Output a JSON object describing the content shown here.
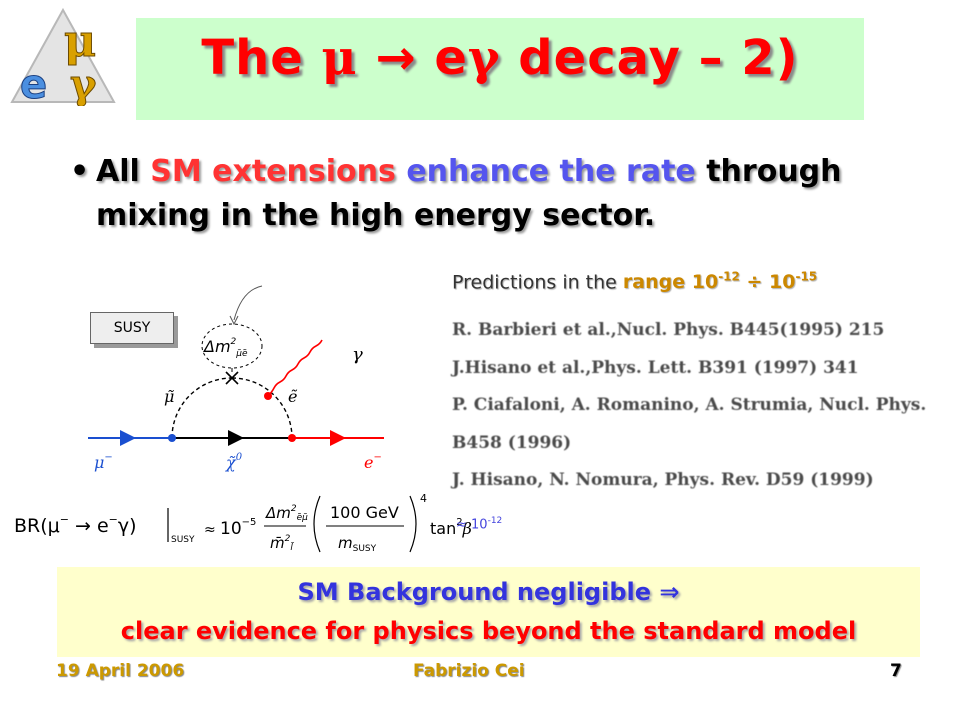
{
  "logo": {
    "letters": [
      "μ",
      "e",
      "γ"
    ],
    "colors": [
      "#d9a000",
      "#4b8fe0",
      "#d9a000"
    ]
  },
  "title": {
    "prefix": "The ",
    "mu": "μ",
    "arrow": " → ",
    "e": "e",
    "gamma": "γ",
    "suffix": " decay – 2)"
  },
  "bullet": {
    "marker": "•",
    "w1": "All ",
    "w2": "SM extensions",
    "w3": " ",
    "w4": "enhance the rate",
    "w5": " through",
    "line2": "mixing in the high energy sector."
  },
  "predictions": {
    "text": "Predictions in the ",
    "range": "range 10",
    "exp1": "-12",
    "div": " ÷ 10",
    "exp2": "-15"
  },
  "references": [
    "R. Barbieri et al.,Nucl. Phys. B445(1995) 215",
    "J.Hisano et al.,Phys. Lett. B391 (1997) 341",
    "P. Ciafaloni, A. Romanino, A. Strumia, Nucl. Phys.",
    "B458 (1996)",
    "J. Hisano, N. Nomura, Phys. Rev. D59 (1999)"
  ],
  "diagram": {
    "susy_label": "SUSY",
    "delta_m": "Δm",
    "delta_m_sub": "μ̃ẽ",
    "delta_m_sup": "2",
    "smuon": "μ̃",
    "selectron": "ẽ",
    "neutralino": "χ̃",
    "neutralino_sup": "0",
    "photon": "γ",
    "muon": "μ",
    "muon_sup": "−",
    "electron": "e",
    "electron_sup": "−"
  },
  "formula": {
    "br": "BR(μ",
    "sup_minus": "−",
    "arrow": " → e",
    "gamma_close": "γ)",
    "susy_sub": "SUSY",
    "approx": "≈",
    "ten": "10",
    "ten_exp": "−5",
    "num": "Δm",
    "num_sub": "ẽμ̃",
    "num_sup": "2",
    "den": "m̄",
    "den_sub": "l̃",
    "den_sup": "2",
    "gev_num": "100 GeV",
    "gev_den": "m",
    "gev_den_sub": "SUSY",
    "pow": "4",
    "tan": "tan",
    "tan_sup": "2",
    "beta": "β"
  },
  "estimate": {
    "text": "≈ 10",
    "exp": "-12"
  },
  "background": {
    "line1": "SM Background negligible ⇒",
    "line2": "clear evidence for physics beyond the standard model"
  },
  "footer": {
    "date": "19 April 2006",
    "author": "Fabrizio Cei",
    "page": "7"
  }
}
